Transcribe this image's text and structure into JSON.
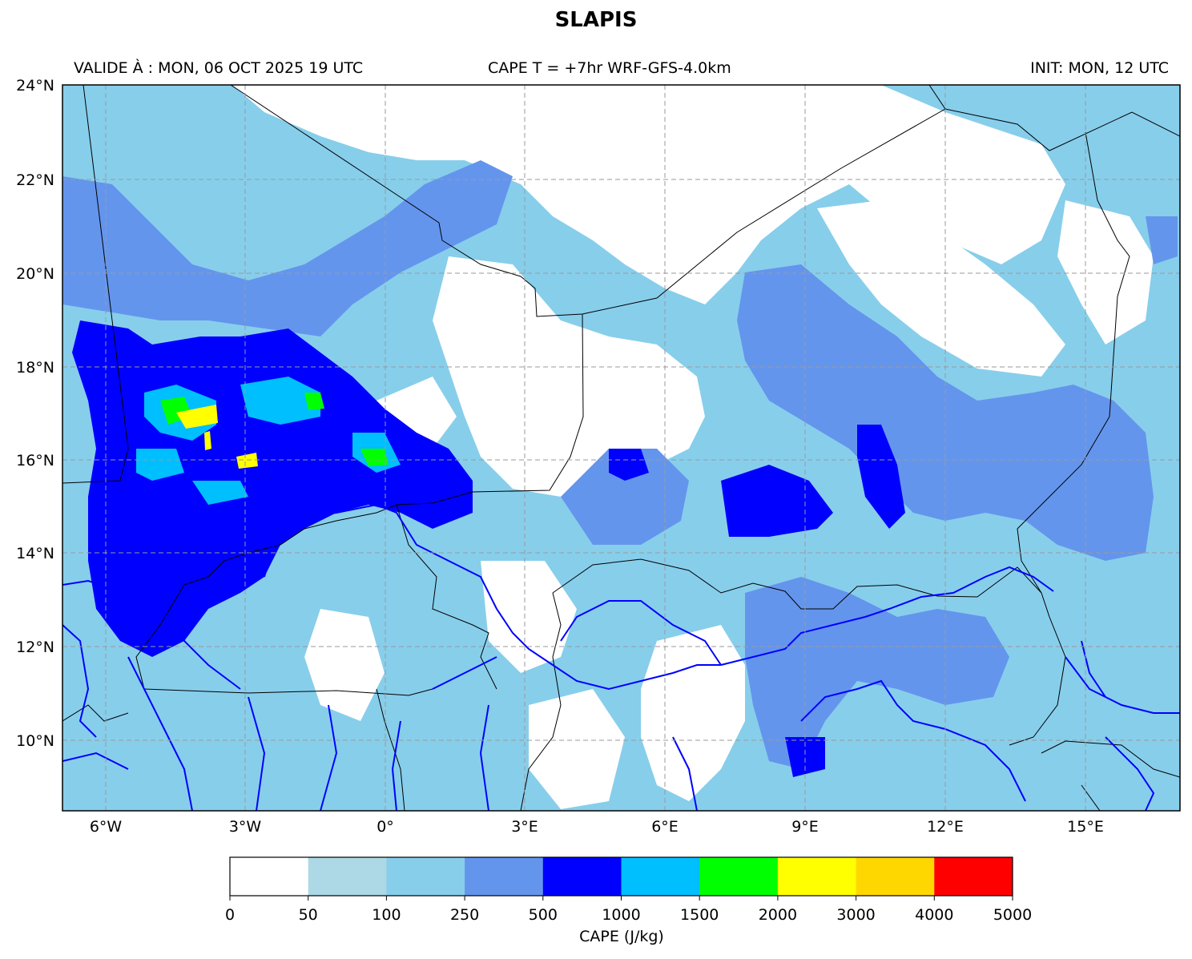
{
  "title": "SLAPIS",
  "subtitle_left": "VALIDE À : MON, 06 OCT 2025 19 UTC",
  "subtitle_center": "CAPE T = +7hr WRF-GFS-4.0km",
  "subtitle_right": "INIT: MON, 12 UTC",
  "map": {
    "lon_range": [
      -7,
      17
    ],
    "lat_range": [
      8.5,
      24
    ],
    "lon_ticks": [
      "6°W",
      "3°W",
      "0°",
      "3°E",
      "6°E",
      "9°E",
      "12°E",
      "15°E"
    ],
    "lat_ticks": [
      "24°N",
      "22°N",
      "20°N",
      "18°N",
      "16°N",
      "14°N",
      "12°N",
      "10°N"
    ],
    "grid": true,
    "features": [
      "CAPE field",
      "country borders",
      "rivers"
    ]
  },
  "colorbar": {
    "label": "CAPE (J/kg)",
    "bounds": [
      "0",
      "50",
      "100",
      "250",
      "500",
      "1000",
      "1500",
      "2000",
      "3000",
      "4000",
      "5000"
    ],
    "colors": [
      "#ffffff",
      "#add8e6",
      "#87ceeb",
      "#6495ed",
      "#0000ff",
      "#00bfff",
      "#00ff00",
      "#ffff00",
      "#ffd700",
      "#ff0000"
    ]
  }
}
